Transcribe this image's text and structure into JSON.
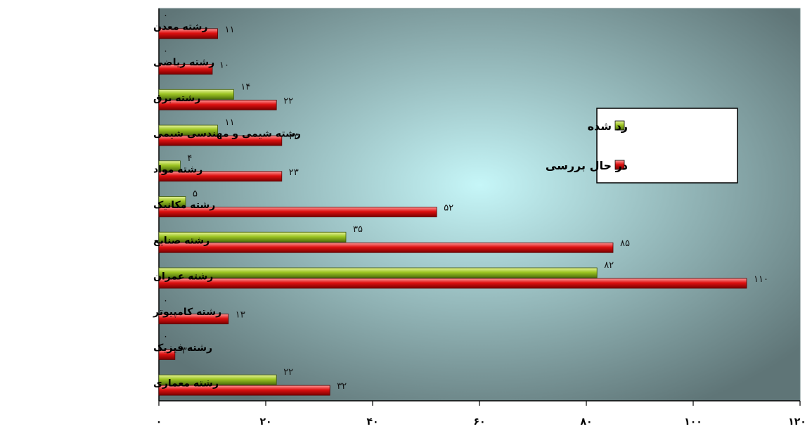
{
  "chart_data": {
    "type": "bar",
    "orientation": "horizontal",
    "categories": [
      "رشته معدن",
      "رشته ریاضی",
      "رشته برق",
      "رشته شیمی و مهندسی شیمی",
      "رشته مواد",
      "رشته مکانیک",
      "رشته صنایع",
      "رشته عمران",
      "رشته کامپیوتر",
      "رشته فیزیک",
      "رشته معماری"
    ],
    "series": [
      {
        "name": "رد شده",
        "color": "#7ea61a",
        "values": [
          0,
          0,
          14,
          11,
          4,
          5,
          35,
          82,
          0,
          0,
          22
        ],
        "labels": [
          "۰",
          "۰",
          "۱۴",
          "۱۱",
          "۴",
          "۵",
          "۳۵",
          "۸۲",
          "۰",
          "۰",
          "۲۲"
        ]
      },
      {
        "name": "در حال بررسی",
        "color": "#c00000",
        "values": [
          11,
          10,
          22,
          23,
          23,
          52,
          85,
          110,
          13,
          3,
          32
        ],
        "labels": [
          "۱۱",
          "۱۰",
          "۲۲",
          "۲۳",
          "۲۳",
          "۵۲",
          "۸۵",
          "۱۱۰",
          "۱۳",
          "۳",
          "۳۲"
        ]
      }
    ],
    "xlim": [
      0,
      120
    ],
    "x_ticks": [
      0,
      20,
      40,
      60,
      80,
      100,
      120
    ],
    "x_tick_labels": [
      "۰",
      "۲۰",
      "۴۰",
      "۶۰",
      "۸۰",
      "۱۰۰",
      "۱۲۰"
    ],
    "legend_position": "right",
    "grid": false,
    "colors": {
      "plot_center": "#c6f6f8",
      "plot_edge": "#5f7577"
    }
  }
}
